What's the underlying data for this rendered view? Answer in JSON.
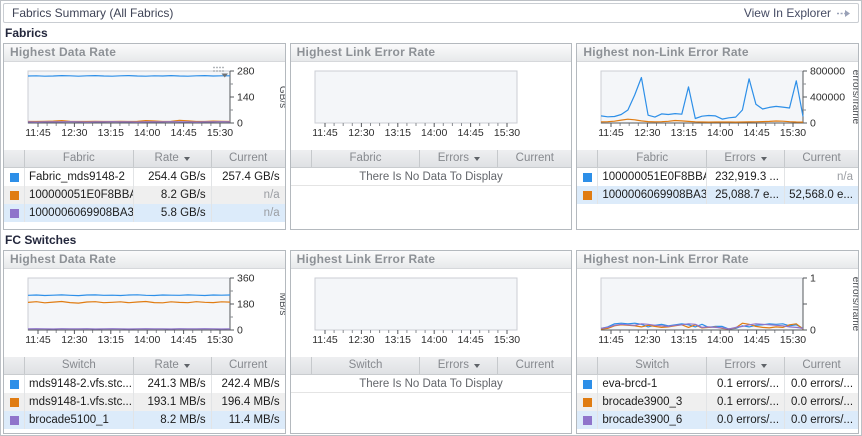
{
  "header": {
    "title": "Fabrics Summary (All Fabrics)",
    "action_label": "View In Explorer"
  },
  "colors": {
    "series_blue": "#2d8fe8",
    "series_orange": "#e07c12",
    "series_purple": "#8f74cb",
    "row_highlight": "#dcebfa"
  },
  "sections": [
    {
      "title": "Fabrics",
      "panels": [
        {
          "title": "Highest Data Rate",
          "columns": {
            "entity": "Fabric",
            "metric": "Rate",
            "current": "Current"
          },
          "rows": [
            {
              "name": "Fabric_mds9148-2",
              "metric": "254.4 GB/s",
              "current": "257.4 GB/s",
              "color": "#2d8fe8"
            },
            {
              "name": "100000051E0F8BBA",
              "metric": "8.2 GB/s",
              "current": "n/a",
              "color": "#e07c12"
            },
            {
              "name": "1000006069908BA3",
              "metric": "5.8 GB/s",
              "current": "n/a",
              "color": "#8f74cb"
            }
          ]
        },
        {
          "title": "Highest Link Error Rate",
          "columns": {
            "entity": "Fabric",
            "metric": "Errors",
            "current": "Current"
          },
          "no_data_message": "There Is No Data To Display"
        },
        {
          "title": "Highest non-Link Error Rate",
          "columns": {
            "entity": "Fabric",
            "metric": "Errors",
            "current": "Current"
          },
          "rows": [
            {
              "name": "100000051E0F8BBA",
              "metric": "232,919.3 ...",
              "current": "n/a",
              "color": "#2d8fe8"
            },
            {
              "name": "1000006069908BA3",
              "metric": "25,088.7 e...",
              "current": "52,568.0 e...",
              "color": "#e07c12"
            }
          ]
        }
      ]
    },
    {
      "title": "FC Switches",
      "panels": [
        {
          "title": "Highest Data Rate",
          "columns": {
            "entity": "Switch",
            "metric": "Rate",
            "current": "Current"
          },
          "rows": [
            {
              "name": "mds9148-2.vfs.stc...",
              "metric": "241.3 MB/s",
              "current": "242.4 MB/s",
              "color": "#2d8fe8"
            },
            {
              "name": "mds9148-1.vfs.stc...",
              "metric": "193.1 MB/s",
              "current": "196.4 MB/s",
              "color": "#e07c12"
            },
            {
              "name": "brocade5100_1",
              "metric": "8.2 MB/s",
              "current": "11.4 MB/s",
              "color": "#8f74cb"
            }
          ]
        },
        {
          "title": "Highest Link Error Rate",
          "columns": {
            "entity": "Switch",
            "metric": "Errors",
            "current": "Current"
          },
          "no_data_message": "There Is No Data To Display"
        },
        {
          "title": "Highest non-Link Error Rate",
          "columns": {
            "entity": "Switch",
            "metric": "Errors",
            "current": "Current"
          },
          "rows": [
            {
              "name": "eva-brcd-1",
              "metric": "0.1 errors/...",
              "current": "0.0 errors/...",
              "color": "#2d8fe8"
            },
            {
              "name": "brocade3900_3",
              "metric": "0.1 errors/...",
              "current": "0.0 errors/...",
              "color": "#e07c12"
            },
            {
              "name": "brocade3900_6",
              "metric": "0.0 errors/...",
              "current": "0.0 errors/...",
              "color": "#8f74cb"
            }
          ]
        }
      ]
    }
  ],
  "chart_data": [
    {
      "type": "line",
      "title": "Fabrics Highest Data Rate",
      "unit": "GB/s",
      "ylim": [
        0,
        280
      ],
      "yticks": [
        {
          "v": 0,
          "label": "0"
        },
        {
          "v": 140,
          "label": "140"
        },
        {
          "v": 280,
          "label": "280"
        }
      ],
      "xticks": [
        "11:45",
        "12:30",
        "13:15",
        "14:00",
        "14:45",
        "15:30"
      ],
      "series": [
        {
          "name": "Fabric_mds9148-2",
          "color": "#2d8fe8",
          "values": [
            253,
            254,
            252,
            253,
            255,
            254,
            252,
            254,
            255,
            253,
            252,
            254,
            255,
            253,
            252,
            254,
            253,
            255,
            253,
            252,
            254,
            255,
            253,
            254,
            254
          ]
        },
        {
          "name": "100000051E0F8BBA",
          "color": "#e07c12",
          "values": [
            8,
            8,
            9,
            10,
            13,
            9,
            8,
            8,
            9,
            8,
            8,
            9,
            8,
            9,
            13,
            11,
            8,
            9,
            14,
            12,
            8,
            8,
            10,
            9,
            8
          ]
        },
        {
          "name": "1000006069908BA3",
          "color": "#8f74cb",
          "values": [
            6,
            5,
            6,
            6,
            6,
            7,
            6,
            5,
            6,
            6,
            7,
            6,
            6,
            5,
            6,
            6,
            6,
            7,
            6,
            6,
            5,
            6,
            6,
            7,
            6
          ]
        }
      ]
    },
    {
      "type": "line",
      "title": "Fabrics Highest Link Error Rate",
      "xticks": [
        "11:45",
        "12:30",
        "13:15",
        "14:00",
        "14:45",
        "15:30"
      ],
      "series": []
    },
    {
      "type": "line",
      "title": "Fabrics Highest non-Link Error Rate",
      "unit": "errors/frame",
      "ylim": [
        0,
        800000
      ],
      "yticks": [
        {
          "v": 0,
          "label": "0"
        },
        {
          "v": 400000,
          "label": "400000"
        },
        {
          "v": 800000,
          "label": "800000"
        }
      ],
      "xticks": [
        "11:45",
        "12:30",
        "13:15",
        "14:00",
        "14:45",
        "15:30"
      ],
      "series": [
        {
          "name": "100000051E0F8BBA",
          "color": "#2d8fe8",
          "values": [
            110000,
            95000,
            100000,
            130000,
            200000,
            430000,
            700000,
            120000,
            90000,
            140000,
            130000,
            145000,
            135000,
            555000,
            70000,
            105000,
            115000,
            110000,
            60000,
            80000,
            90000,
            200000,
            680000,
            290000,
            215000,
            240000,
            255000,
            245000,
            230000,
            650000,
            100000
          ]
        },
        {
          "name": "1000006069908BA3",
          "color": "#e07c12",
          "values": [
            18000,
            20000,
            28000,
            45000,
            58000,
            50000,
            32000,
            22000,
            18000,
            20000,
            26000,
            38000,
            32000,
            24000,
            18000,
            15000,
            14000,
            15000,
            16000,
            15000,
            14000,
            15000,
            17000,
            19000,
            21000,
            24000,
            30000,
            27000,
            20000,
            16000,
            14000
          ]
        }
      ]
    },
    {
      "type": "line",
      "title": "FC Switches Highest Data Rate",
      "unit": "MB/s",
      "ylim": [
        0,
        360
      ],
      "yticks": [
        {
          "v": 0,
          "label": "0"
        },
        {
          "v": 180,
          "label": "180"
        },
        {
          "v": 360,
          "label": "360"
        }
      ],
      "xticks": [
        "11:45",
        "12:30",
        "13:15",
        "14:00",
        "14:45",
        "15:30"
      ],
      "series": [
        {
          "name": "mds9148-2.vfs.stc...",
          "color": "#2d8fe8",
          "values": [
            240,
            242,
            239,
            241,
            243,
            240,
            238,
            242,
            243,
            240,
            241,
            239,
            242,
            244,
            240,
            239,
            242,
            241,
            240,
            243,
            241,
            239,
            242,
            241,
            242
          ]
        },
        {
          "name": "mds9148-1.vfs.stc...",
          "color": "#e07c12",
          "values": [
            191,
            196,
            188,
            193,
            197,
            190,
            186,
            194,
            196,
            189,
            192,
            195,
            189,
            194,
            197,
            190,
            188,
            195,
            191,
            189,
            196,
            192,
            190,
            195,
            193
          ]
        },
        {
          "name": "brocade5100_1",
          "color": "#8f74cb",
          "values": [
            8,
            9,
            8,
            7,
            9,
            8,
            8,
            9,
            7,
            8,
            9,
            8,
            7,
            8,
            9,
            8,
            8,
            7,
            9,
            8,
            8,
            9,
            8,
            7,
            8
          ]
        }
      ]
    },
    {
      "type": "line",
      "title": "FC Switches Highest Link Error Rate",
      "xticks": [
        "11:45",
        "12:30",
        "13:15",
        "14:00",
        "14:45",
        "15:30"
      ],
      "series": []
    },
    {
      "type": "line",
      "title": "FC Switches Highest non-Link Error Rate",
      "unit": "errors/frame",
      "ylim": [
        0,
        1
      ],
      "yticks": [
        {
          "v": 0,
          "label": "0"
        },
        {
          "v": 0.5,
          "label": ""
        },
        {
          "v": 1,
          "label": "1"
        }
      ],
      "xticks": [
        "11:45",
        "12:30",
        "13:15",
        "14:00",
        "14:45",
        "15:30"
      ],
      "series": [
        {
          "name": "eva-brcd-1",
          "color": "#2d8fe8",
          "values": [
            0.03,
            0.06,
            0.12,
            0.13,
            0.12,
            0.13,
            0.11,
            0.06,
            0.09,
            0.11,
            0.08,
            0.1,
            0.12,
            0.1,
            0.06,
            0.11,
            0.05,
            0.07,
            0.07,
            0.02,
            0.03,
            0.08,
            0.06,
            0.09,
            0.1,
            0.12,
            0.11,
            0.12,
            0.08,
            0.1,
            0.03
          ]
        },
        {
          "name": "brocade3900_3",
          "color": "#e07c12",
          "values": [
            0.02,
            0.03,
            0.08,
            0.1,
            0.09,
            0.08,
            0.06,
            0.09,
            0.07,
            0.05,
            0.06,
            0.08,
            0.1,
            0.05,
            0.1,
            0.04,
            0.05,
            0.06,
            0.03,
            0.02,
            0.04,
            0.13,
            0.11,
            0.07,
            0.05,
            0.04,
            0.06,
            0.05,
            0.1,
            0.12,
            0.02
          ]
        },
        {
          "name": "brocade3900_6",
          "color": "#8f74cb",
          "values": [
            0.03,
            0.05,
            0.09,
            0.11,
            0.1,
            0.09,
            0.12,
            0.11,
            0.09,
            0.08,
            0.07,
            0.09,
            0.1,
            0.12,
            0.11,
            0.05,
            0.06,
            0.05,
            0.04,
            0.02,
            0.05,
            0.07,
            0.1,
            0.12,
            0.11,
            0.1,
            0.09,
            0.08,
            0.06,
            0.05,
            0.03
          ]
        }
      ]
    }
  ]
}
